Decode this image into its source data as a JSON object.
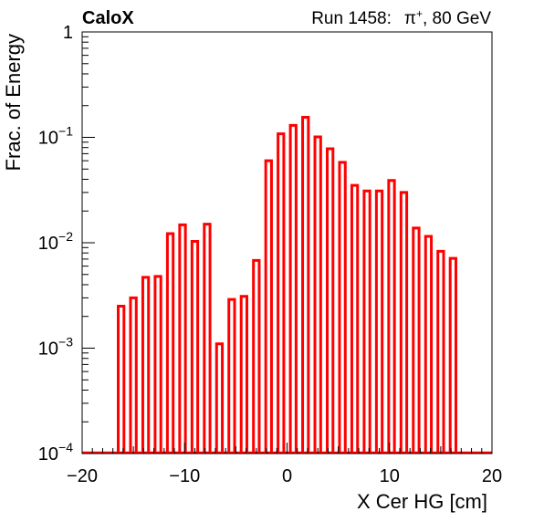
{
  "chart_data": {
    "type": "bar",
    "style": "step-histogram",
    "experiment": "CaloX",
    "run_label": "Run 1458:",
    "particle": "π",
    "particle_charge": "+",
    "energy_label": ", 80 GeV",
    "xlabel": "X Cer HG [cm]",
    "ylabel": "Frac. of Energy",
    "xlim": [
      -20,
      20
    ],
    "ylim": [
      0.0001,
      1
    ],
    "yscale": "log",
    "x_ticks": [
      "−20",
      "−10",
      "0",
      "10",
      "20"
    ],
    "y_ticks": [
      {
        "base": "1",
        "exp": ""
      },
      {
        "base": "10",
        "exp": "−1"
      },
      {
        "base": "10",
        "exp": "−2"
      },
      {
        "base": "10",
        "exp": "−3"
      },
      {
        "base": "10",
        "exp": "−4"
      }
    ],
    "grid": false,
    "line_color": "#ff0000",
    "x": [
      -16.2,
      -15.0,
      -13.8,
      -12.6,
      -11.4,
      -10.2,
      -9.0,
      -7.8,
      -6.6,
      -5.4,
      -4.2,
      -3.0,
      -1.8,
      -0.6,
      0.6,
      1.8,
      3.0,
      4.2,
      5.4,
      6.6,
      7.8,
      9.0,
      10.2,
      11.4,
      12.6,
      13.8,
      15.0,
      16.2
    ],
    "values": [
      0.0025,
      0.003,
      0.0047,
      0.0048,
      0.0122,
      0.0148,
      0.0103,
      0.015,
      0.0011,
      0.0029,
      0.0031,
      0.0068,
      0.06,
      0.108,
      0.13,
      0.155,
      0.101,
      0.078,
      0.058,
      0.035,
      0.031,
      0.031,
      0.039,
      0.03,
      0.0138,
      0.0115,
      0.0083,
      0.0071
    ]
  }
}
